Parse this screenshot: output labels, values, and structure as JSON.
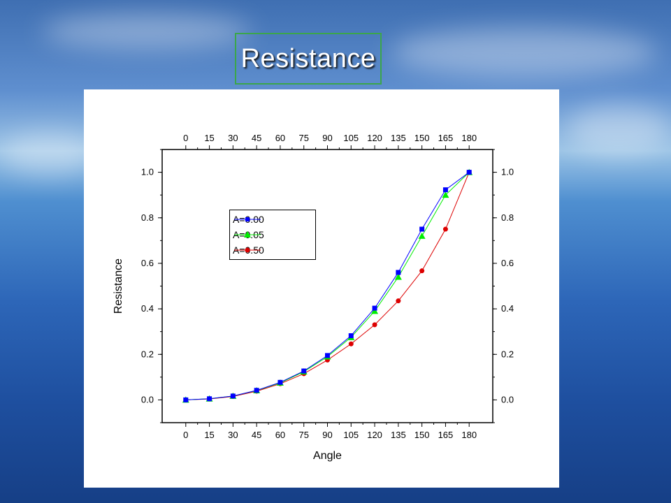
{
  "slide": {
    "title": "Resistance"
  },
  "colors": {
    "title_border": "#3ba64b",
    "series_a000": "#0000ff",
    "series_a005": "#00ee00",
    "series_a050": "#dd0000"
  },
  "chart_data": {
    "type": "line",
    "title": "",
    "xlabel": "Angle",
    "ylabel": "Resistance",
    "xlim": [
      -15,
      195
    ],
    "ylim": [
      -0.1,
      1.1
    ],
    "x_ticks": [
      0,
      15,
      30,
      45,
      60,
      75,
      90,
      105,
      120,
      135,
      150,
      165,
      180
    ],
    "y_ticks": [
      0.0,
      0.2,
      0.4,
      0.6,
      0.8,
      1.0
    ],
    "top_axis_labels": true,
    "right_axis_labels": true,
    "grid": false,
    "legend": "upper-left",
    "x": [
      0,
      15,
      30,
      45,
      60,
      75,
      90,
      105,
      120,
      135,
      150,
      165,
      180
    ],
    "series": [
      {
        "name": "A=0.00",
        "marker": "square",
        "color": "#0000ff",
        "values": [
          0.0,
          0.005,
          0.017,
          0.042,
          0.077,
          0.127,
          0.195,
          0.282,
          0.403,
          0.56,
          0.75,
          0.923,
          1.0
        ]
      },
      {
        "name": "A=0.05",
        "marker": "triangle",
        "color": "#00ee00",
        "values": [
          0.0,
          0.005,
          0.017,
          0.041,
          0.075,
          0.124,
          0.19,
          0.275,
          0.39,
          0.54,
          0.72,
          0.9,
          1.0
        ]
      },
      {
        "name": "A=0.50",
        "marker": "circle",
        "color": "#dd0000",
        "values": [
          0.0,
          0.004,
          0.015,
          0.038,
          0.071,
          0.115,
          0.175,
          0.246,
          0.33,
          0.435,
          0.567,
          0.75,
          1.0
        ]
      }
    ]
  }
}
